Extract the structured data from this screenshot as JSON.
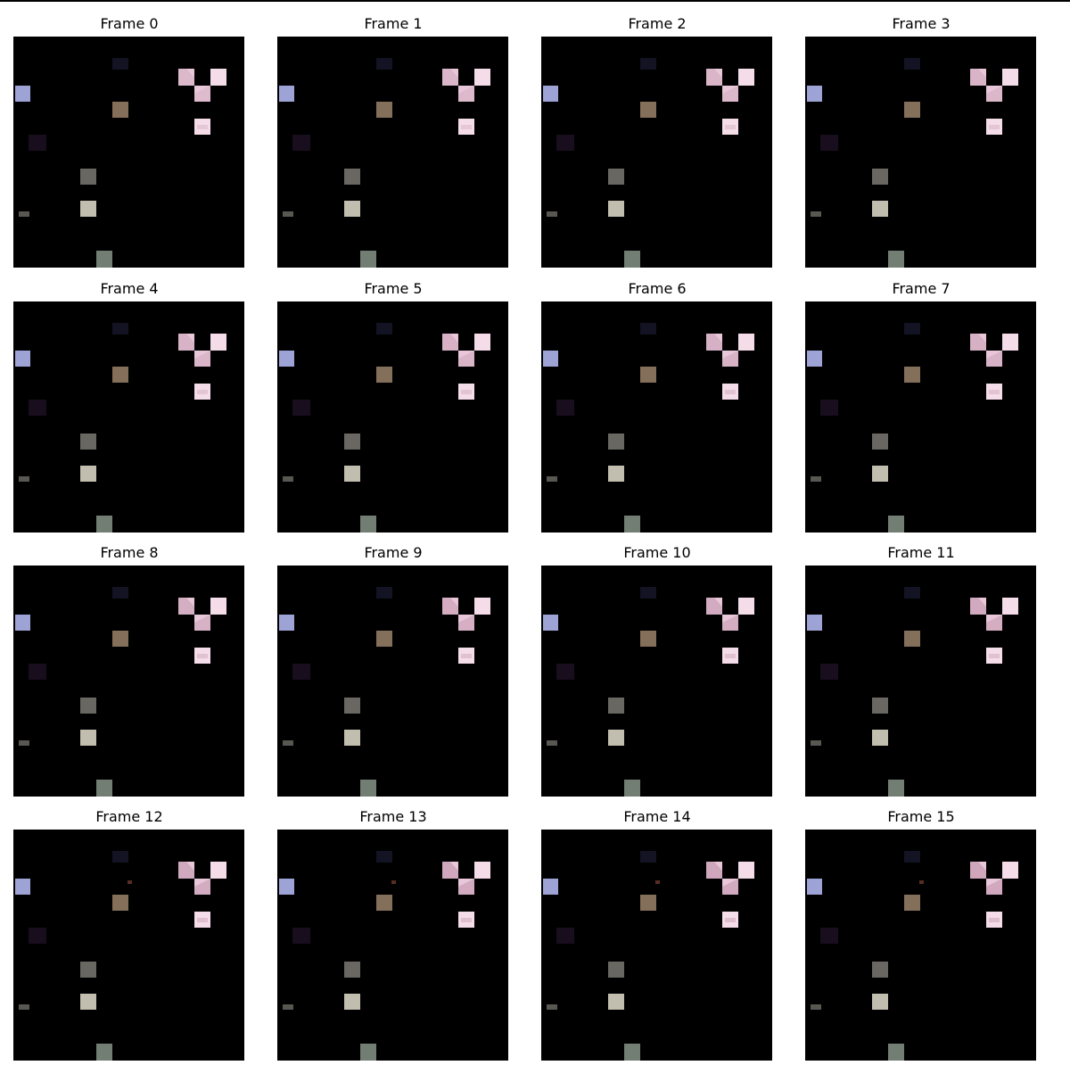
{
  "figure": {
    "frames": [
      {
        "title": "Frame 0",
        "variant": 0
      },
      {
        "title": "Frame 1",
        "variant": 1
      },
      {
        "title": "Frame 2",
        "variant": 2
      },
      {
        "title": "Frame 3",
        "variant": 3
      },
      {
        "title": "Frame 4",
        "variant": 4
      },
      {
        "title": "Frame 5",
        "variant": 5
      },
      {
        "title": "Frame 6",
        "variant": 6
      },
      {
        "title": "Frame 7",
        "variant": 7
      },
      {
        "title": "Frame 8",
        "variant": 8
      },
      {
        "title": "Frame 9",
        "variant": 9
      },
      {
        "title": "Frame 10",
        "variant": 10
      },
      {
        "title": "Frame 11",
        "variant": 11
      },
      {
        "title": "Frame 12",
        "variant": 12
      },
      {
        "title": "Frame 13",
        "variant": 13
      },
      {
        "title": "Frame 14",
        "variant": 14
      },
      {
        "title": "Frame 15",
        "variant": 15
      }
    ],
    "colors": {
      "background": "#ffffff",
      "frame_fill": "#000000",
      "pink": "#e8c7d8",
      "pink_light": "#f4dce8",
      "pink_dark": "#b98aa3",
      "lavender": "#9ea3d6",
      "brown": "#8b7560",
      "grey": "#6f6d66",
      "grey_light": "#d6d2c2",
      "dark_purple": "#2a1730",
      "dark_navy": "#151528",
      "greenish": "#7e8b7f"
    }
  }
}
